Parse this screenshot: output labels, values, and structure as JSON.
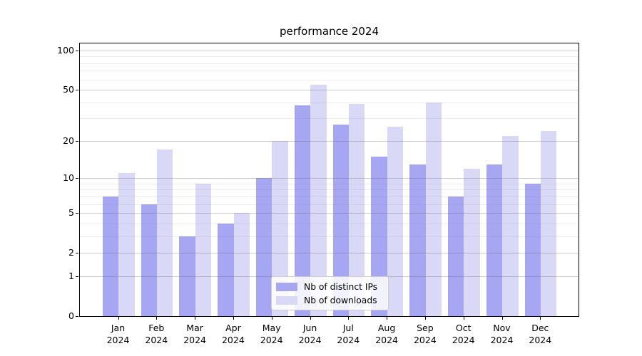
{
  "title": "performance 2024",
  "colors": {
    "ips_bar": "#a6a6f2",
    "downloads_bar": "#d9d9f7",
    "grid_major": "#cdcdcd",
    "grid_minor": "#ededed",
    "axis": "#000000",
    "legend_border": "#cccccc",
    "background": "#ffffff",
    "text": "#000000"
  },
  "chart_data": {
    "type": "bar",
    "title": "performance 2024",
    "categories": [
      "Jan 2024",
      "Feb 2024",
      "Mar 2024",
      "Apr 2024",
      "May 2024",
      "Jun 2024",
      "Jul 2024",
      "Aug 2024",
      "Sep 2024",
      "Oct 2024",
      "Nov 2024",
      "Dec 2024"
    ],
    "months": [
      "Jan",
      "Feb",
      "Mar",
      "Apr",
      "May",
      "Jun",
      "Jul",
      "Aug",
      "Sep",
      "Oct",
      "Nov",
      "Dec"
    ],
    "year": "2024",
    "series": [
      {
        "name": "Nb of distinct IPs",
        "values": [
          7,
          6,
          3,
          4,
          10,
          38,
          27,
          15,
          13,
          7,
          13,
          9
        ]
      },
      {
        "name": "Nb of downloads",
        "values": [
          11,
          17,
          9,
          5,
          20,
          55,
          39,
          26,
          40,
          12,
          22,
          24
        ]
      }
    ],
    "xlabel": "",
    "ylabel": "",
    "yscale": "log1p",
    "ylim": [
      0,
      112
    ],
    "y_ticks": [
      0,
      1,
      2,
      5,
      10,
      20,
      50,
      100
    ],
    "y_minor_gridlines": [
      3,
      4,
      6,
      7,
      8,
      9,
      30,
      40,
      60,
      70,
      80,
      90
    ],
    "grid": true,
    "legend_position": "lower center"
  }
}
